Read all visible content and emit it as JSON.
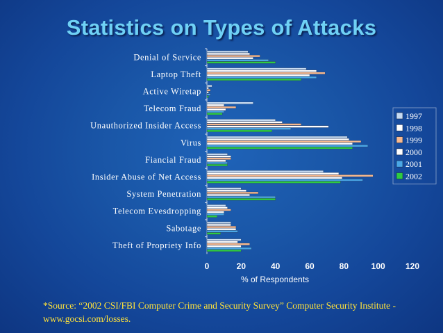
{
  "title": "Statistics on Types of Attacks",
  "source": "*Source: “2002 CSI/FBI Computer Crime and Security Survey” Computer Security Institute - www.gocsi.com/losses.",
  "chart_data": {
    "type": "bar",
    "orientation": "horizontal",
    "title": "Statistics on Types of Attacks",
    "xlabel": "% of Respondents",
    "ylabel": "",
    "xlim": [
      0,
      120
    ],
    "xticks": [
      "0",
      "20",
      "40",
      "60",
      "80",
      "100",
      "120"
    ],
    "categories": [
      "Denial of Service",
      "Laptop Theft",
      "Active Wiretap",
      "Telecom Fraud",
      "Unauthorized Insider Access",
      "Virus",
      "Fiancial Fraud",
      "Insider Abuse of Net Access",
      "System Penetration",
      "Telecom Evesdropping",
      "Sabotage",
      "Theft of Propriety Info"
    ],
    "series": [
      {
        "name": "1997",
        "color": "#c6dbf2",
        "values": [
          24,
          58,
          3,
          27,
          40,
          82,
          12,
          68,
          20,
          11,
          14,
          20
        ]
      },
      {
        "name": "1998",
        "color": "#ffffff",
        "values": [
          25,
          64,
          1,
          10,
          44,
          83,
          14,
          77,
          23,
          12,
          14,
          18
        ]
      },
      {
        "name": "1999",
        "color": "#f7b98e",
        "values": [
          31,
          69,
          2,
          17,
          55,
          90,
          14,
          97,
          30,
          14,
          17,
          25
        ]
      },
      {
        "name": "2000",
        "color": "#ffffff",
        "values": [
          27,
          60,
          1,
          11,
          71,
          85,
          11,
          79,
          25,
          10,
          17,
          20
        ]
      },
      {
        "name": "2001",
        "color": "#4aa7e6",
        "values": [
          36,
          64,
          2,
          10,
          49,
          94,
          12,
          91,
          40,
          10,
          18,
          26
        ]
      },
      {
        "name": "2002",
        "color": "#2ecc40",
        "values": [
          40,
          55,
          1,
          9,
          38,
          85,
          12,
          78,
          40,
          6,
          8,
          20
        ]
      }
    ],
    "legend": "right",
    "grid": false
  }
}
